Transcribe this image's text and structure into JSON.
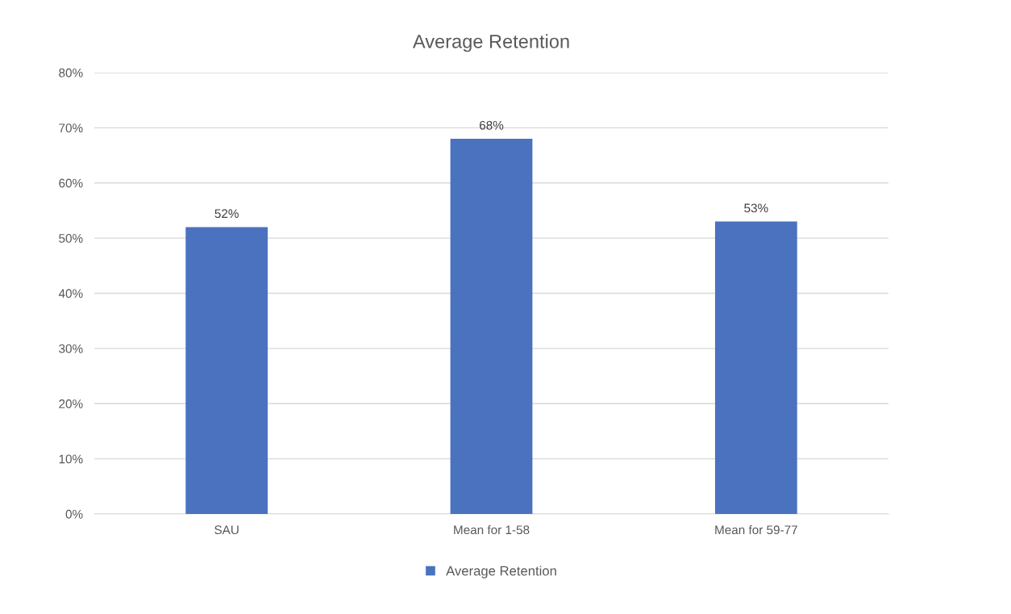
{
  "chart_data": {
    "type": "bar",
    "title": "Average Retention",
    "categories": [
      "SAU",
      "Mean for 1-58",
      "Mean for 59-77"
    ],
    "series": [
      {
        "name": "Average Retention",
        "color": "#4a72be",
        "values": [
          52,
          68,
          53
        ],
        "value_labels": [
          "52%",
          "68%",
          "53%"
        ]
      }
    ],
    "ylim": [
      0,
      80
    ],
    "yticks": [
      {
        "value": 0,
        "label": "0%"
      },
      {
        "value": 10,
        "label": "10%"
      },
      {
        "value": 20,
        "label": "20%"
      },
      {
        "value": 30,
        "label": "30%"
      },
      {
        "value": 40,
        "label": "40%"
      },
      {
        "value": 50,
        "label": "50%"
      },
      {
        "value": 60,
        "label": "60%"
      },
      {
        "value": 70,
        "label": "70%"
      },
      {
        "value": 80,
        "label": "80%"
      }
    ],
    "grid": "y",
    "legend": "bottom"
  }
}
